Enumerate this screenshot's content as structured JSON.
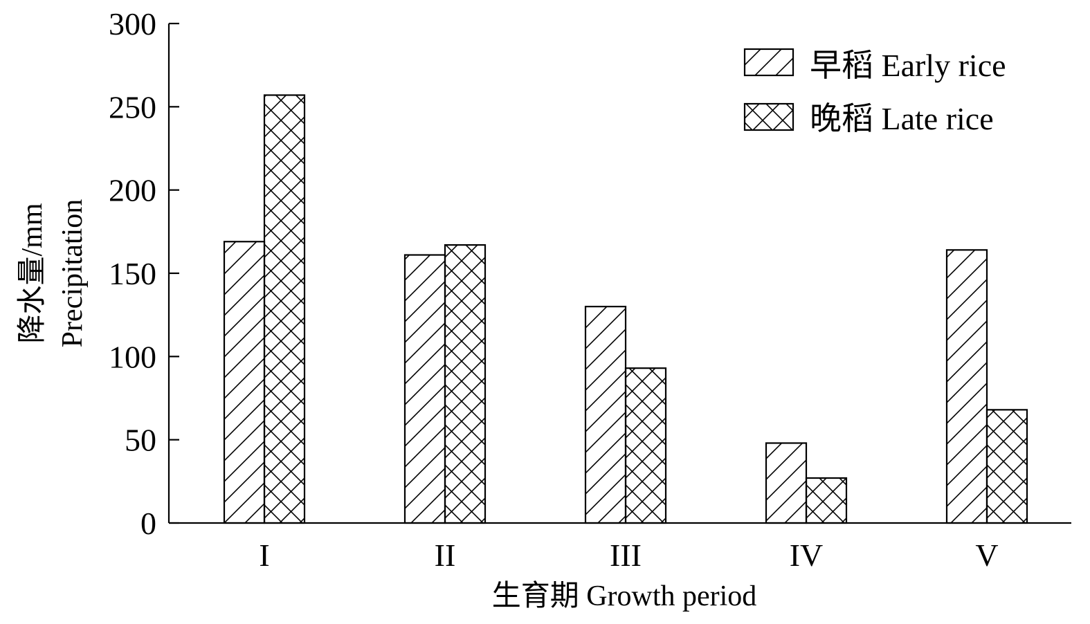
{
  "chart_data": {
    "type": "bar",
    "categories": [
      "I",
      "II",
      "III",
      "IV",
      "V"
    ],
    "series": [
      {
        "name": "早稻 Early rice",
        "pattern": "hatch-diagonal",
        "values": [
          169,
          161,
          130,
          48,
          164
        ]
      },
      {
        "name": "晚稻 Late rice",
        "pattern": "hatch-cross",
        "values": [
          257,
          167,
          93,
          27,
          68
        ]
      }
    ],
    "title": "",
    "xlabel": "生育期 Growth period",
    "ylabel": [
      "降水量/mm",
      "Precipitation"
    ],
    "ylim": [
      0,
      300
    ],
    "yticks": [
      0,
      50,
      100,
      150,
      200,
      250,
      300
    ],
    "grid": false,
    "legend": "top-right",
    "colors": {
      "stroke": "#000000",
      "fill": "#ffffff"
    }
  }
}
